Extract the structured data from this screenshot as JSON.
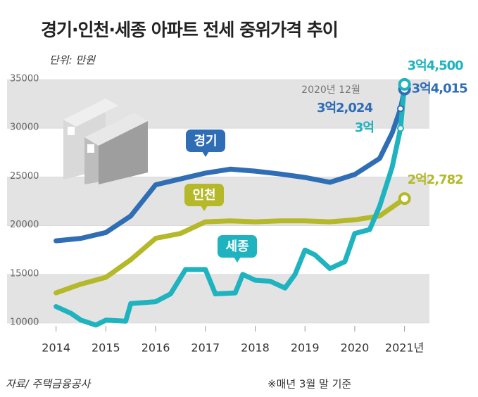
{
  "chart_data": {
    "type": "line",
    "title": "경기·인천·세종 아파트 전세 중위가격 추이",
    "unit_label": "단위: 만원",
    "source": "자료/ 주택금융공사",
    "note": "※매년 3월 말 기준",
    "annotation": "2020년 12월",
    "xlim": [
      2013.1,
      2021.5
    ],
    "xticks": [
      2014,
      2015,
      2016,
      2017,
      2018,
      2019,
      2020,
      {
        "value": 2021,
        "label": "2021년"
      }
    ],
    "ylim": [
      10000,
      35000
    ],
    "yticks": [
      10000,
      15000,
      20000,
      25000,
      30000,
      35000
    ],
    "bands": true,
    "series": [
      {
        "name": "경기",
        "color": "#2f6db5",
        "x": [
          2014,
          2014.5,
          2015,
          2015.5,
          2016,
          2016.5,
          2017,
          2017.5,
          2018,
          2018.5,
          2019,
          2019.5,
          2020,
          2020.5,
          2020.75,
          2020.92,
          2021
        ],
        "values": [
          18450,
          18700,
          19300,
          21000,
          24200,
          24800,
          25400,
          25800,
          25600,
          25300,
          24950,
          24450,
          25250,
          26900,
          29500,
          32024,
          34015
        ],
        "value_labels": [
          null,
          null,
          null,
          null,
          null,
          null,
          null,
          null,
          null,
          null,
          null,
          null,
          null,
          null,
          null,
          "3억2,024",
          "3억4,015"
        ]
      },
      {
        "name": "인천",
        "color": "#b5b829",
        "x": [
          2014,
          2014.5,
          2015,
          2015.5,
          2016,
          2016.5,
          2017,
          2017.5,
          2018,
          2018.5,
          2019,
          2019.5,
          2020,
          2020.5,
          2021
        ],
        "values": [
          13100,
          14000,
          14700,
          16500,
          18700,
          19200,
          20400,
          20500,
          20400,
          20500,
          20500,
          20400,
          20600,
          21000,
          22782
        ],
        "value_labels": [
          null,
          null,
          null,
          null,
          null,
          null,
          null,
          null,
          null,
          null,
          null,
          null,
          null,
          null,
          "2억2,782"
        ]
      },
      {
        "name": "세종",
        "color": "#1fb3c0",
        "x": [
          2014,
          2014.3,
          2014.5,
          2014.8,
          2015,
          2015.4,
          2015.5,
          2016,
          2016.3,
          2016.6,
          2017,
          2017.2,
          2017.6,
          2017.75,
          2018,
          2018.3,
          2018.6,
          2018.8,
          2019,
          2019.2,
          2019.5,
          2019.8,
          2020,
          2020.3,
          2020.5,
          2020.75,
          2020.92,
          2021
        ],
        "values": [
          11700,
          11000,
          10300,
          9800,
          10300,
          10200,
          12000,
          12200,
          13000,
          15500,
          15500,
          13000,
          13100,
          15000,
          14400,
          14300,
          13600,
          15000,
          17500,
          17000,
          15600,
          16300,
          19200,
          19600,
          22000,
          26000,
          30000,
          34500
        ],
        "value_labels": [
          null,
          null,
          null,
          null,
          null,
          null,
          null,
          null,
          null,
          null,
          null,
          null,
          null,
          null,
          null,
          null,
          null,
          null,
          null,
          null,
          null,
          null,
          null,
          null,
          null,
          null,
          "3억",
          "3억4,500"
        ]
      }
    ]
  }
}
